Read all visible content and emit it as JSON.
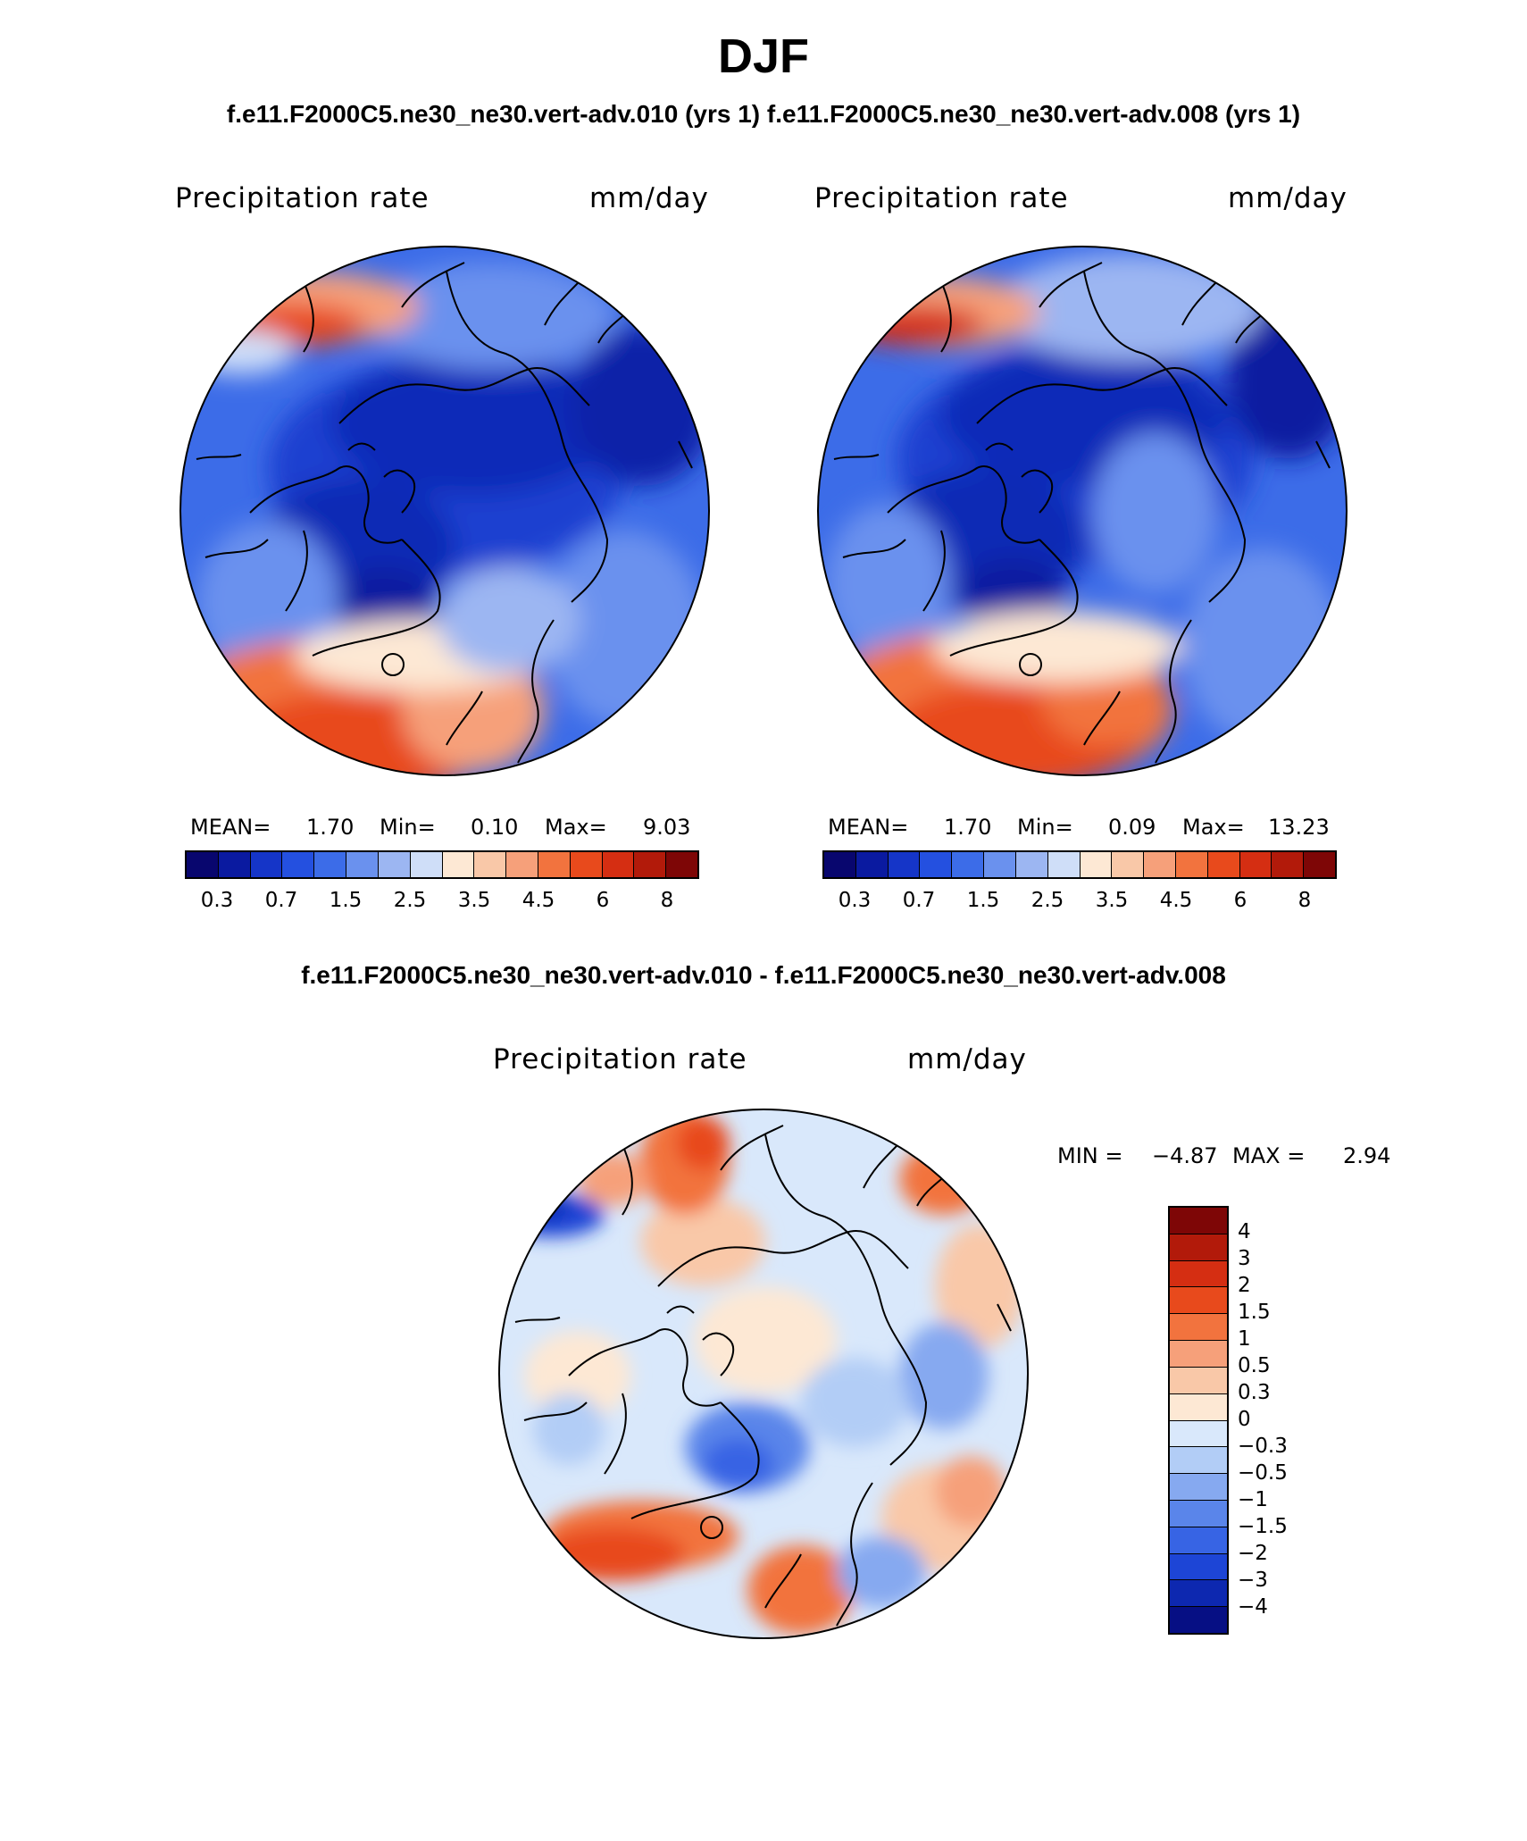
{
  "title": "DJF",
  "panels_header": "f.e11.F2000C5.ne30_ne30.vert-adv.010 (yrs 1) f.e11.F2000C5.ne30_ne30.vert-adv.008 (yrs 1)",
  "panel_a": {
    "field": "Precipitation rate",
    "units": "mm/day",
    "mean_label": "MEAN=",
    "mean": "1.70",
    "min_label": "Min=",
    "min": "0.10",
    "max_label": "Max=",
    "max": "9.03"
  },
  "panel_b": {
    "field": "Precipitation rate",
    "units": "mm/day",
    "mean_label": "MEAN=",
    "mean": "1.70",
    "min_label": "Min=",
    "min": "0.09",
    "max_label": "Max=",
    "max": "13.23"
  },
  "abs_colorbar": {
    "colors": [
      "#08066e",
      "#0a1aa0",
      "#1535c8",
      "#2450e0",
      "#3c6ce8",
      "#6a91ee",
      "#9cb6f2",
      "#cfdef8",
      "#fde8d4",
      "#f9c8a8",
      "#f6a07a",
      "#f2733e",
      "#e84a1c",
      "#d52e12",
      "#b21a0a",
      "#7e0606"
    ],
    "labels": [
      "0.3",
      "0.7",
      "1.5",
      "2.5",
      "3.5",
      "4.5",
      "6",
      "8"
    ]
  },
  "diff_header": "f.e11.F2000C5.ne30_ne30.vert-adv.010 - f.e11.F2000C5.ne30_ne30.vert-adv.008",
  "panel_diff": {
    "field": "Precipitation rate",
    "units": "mm/day",
    "min_label": "MIN =",
    "min": "−4.87",
    "max_label": "MAX =",
    "max": "2.94"
  },
  "diff_colorbar": {
    "colors": [
      "#7e0606",
      "#b21a0a",
      "#d52e12",
      "#e84a1c",
      "#f2733e",
      "#f6a07a",
      "#f9c8a8",
      "#fde8d4",
      "#d9e8fb",
      "#b2cdf6",
      "#86a9f0",
      "#5a85ea",
      "#3764e4",
      "#1d45d6",
      "#0d28b0",
      "#060f84"
    ],
    "labels": [
      "4",
      "3",
      "2",
      "1.5",
      "1",
      "0.5",
      "0.3",
      "0",
      "−0.3",
      "−0.5",
      "−1",
      "−1.5",
      "−2",
      "−3",
      "−4"
    ]
  },
  "colors": {
    "land_outline": "#000000",
    "map_border": "#000000"
  }
}
